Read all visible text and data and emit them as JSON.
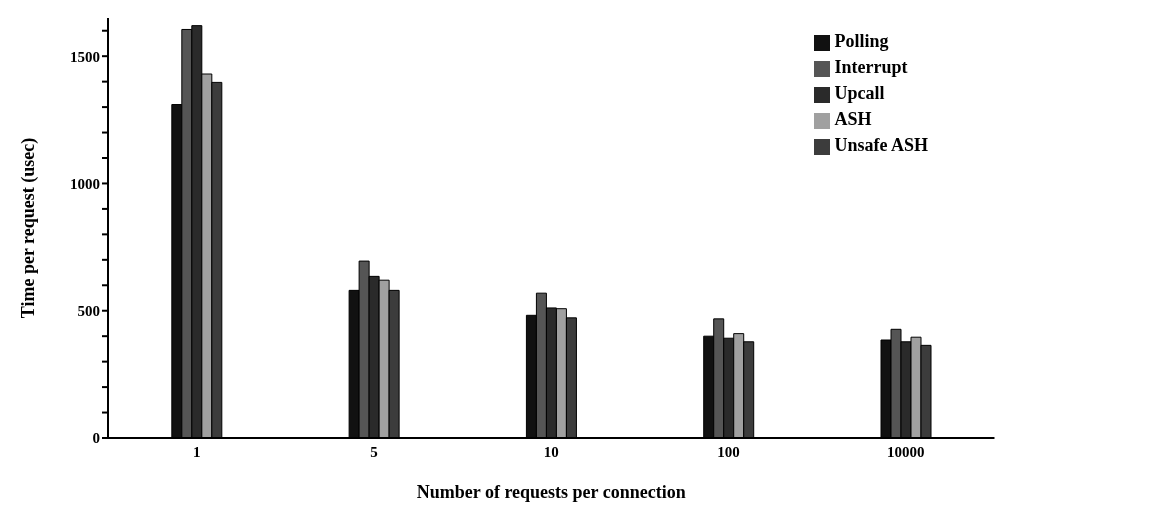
{
  "chart_data": {
    "type": "bar",
    "xlabel": "Number of requests per connection",
    "ylabel": "Time per request (usec)",
    "categories": [
      "1",
      "5",
      "10",
      "100",
      "10000"
    ],
    "series": [
      {
        "name": "Polling",
        "color": "#111111",
        "values": [
          1310,
          580,
          482,
          400,
          385
        ]
      },
      {
        "name": "Interrupt",
        "color": "#555555",
        "values": [
          1605,
          695,
          569,
          468,
          427
        ]
      },
      {
        "name": "Upcall",
        "color": "#2a2a2a",
        "values": [
          1620,
          635,
          511,
          392,
          378
        ]
      },
      {
        "name": "ASH",
        "color": "#a0a0a0",
        "values": [
          1430,
          620,
          508,
          410,
          396
        ]
      },
      {
        "name": "Unsafe ASH",
        "color": "#3c3c3c",
        "values": [
          1397,
          580,
          472,
          378,
          364
        ]
      }
    ],
    "ylim": [
      0,
      1650
    ],
    "yticks": [
      0,
      {
        "value": 100,
        "label": null
      },
      {
        "value": 200,
        "label": null
      },
      {
        "value": 300,
        "label": null
      },
      {
        "value": 400,
        "label": null
      },
      500,
      {
        "value": 600,
        "label": null
      },
      {
        "value": 700,
        "label": null
      },
      {
        "value": 800,
        "label": null
      },
      {
        "value": 900,
        "label": null
      },
      1000,
      {
        "value": 1100,
        "label": null
      },
      {
        "value": 1200,
        "label": null
      },
      {
        "value": 1300,
        "label": null
      },
      {
        "value": 1400,
        "label": null
      },
      1500,
      {
        "value": 1600,
        "label": null
      }
    ],
    "grid": false,
    "legend": "top right"
  }
}
